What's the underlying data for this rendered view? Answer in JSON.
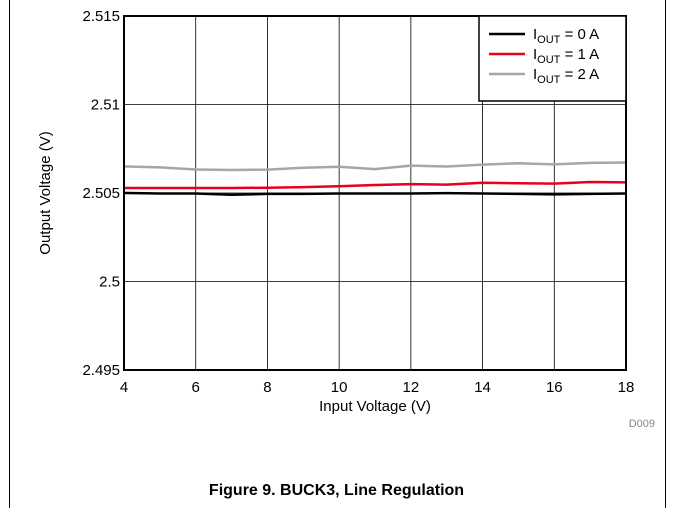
{
  "figure": {
    "caption": "Figure 9. BUCK3, Line Regulation",
    "code": "D009"
  },
  "chart_data": {
    "type": "line",
    "title": "",
    "xlabel": "Input Voltage (V)",
    "ylabel": "Output Voltage (V)",
    "xlim": [
      4,
      18
    ],
    "ylim": [
      2.495,
      2.515
    ],
    "xticks": [
      4,
      6,
      8,
      10,
      12,
      14,
      16,
      18
    ],
    "yticks": [
      2.495,
      2.5,
      2.505,
      2.51,
      2.515
    ],
    "ytick_labels": [
      "2.495",
      "2.5",
      "2.505",
      "2.51",
      "2.515"
    ],
    "grid": true,
    "legend_position": "top-right",
    "x": [
      4,
      5,
      6,
      7,
      8,
      9,
      10,
      11,
      12,
      13,
      14,
      15,
      16,
      17,
      18
    ],
    "series": [
      {
        "name": "I_OUT = 0 A",
        "label_main": "I",
        "label_sub": "OUT",
        "label_rest": " = 0 A",
        "color": "#000000",
        "values": [
          2.505,
          2.50497,
          2.50497,
          2.5049,
          2.50495,
          2.50495,
          2.50497,
          2.50497,
          2.50497,
          2.50499,
          2.50497,
          2.50495,
          2.50492,
          2.50495,
          2.50497
        ]
      },
      {
        "name": "I_OUT = 1 A",
        "label_main": "I",
        "label_sub": "OUT",
        "label_rest": " = 1 A",
        "color": "#e8001c",
        "values": [
          2.50528,
          2.50528,
          2.50528,
          2.50528,
          2.5053,
          2.50533,
          2.50538,
          2.50545,
          2.5055,
          2.50547,
          2.50558,
          2.50555,
          2.50553,
          2.50562,
          2.5056
        ]
      },
      {
        "name": "I_OUT = 2 A",
        "label_main": "I",
        "label_sub": "OUT",
        "label_rest": " = 2 A",
        "color": "#a6a6a6",
        "values": [
          2.5065,
          2.50645,
          2.50633,
          2.5063,
          2.50632,
          2.50643,
          2.50648,
          2.50635,
          2.50655,
          2.5065,
          2.5066,
          2.50668,
          2.50662,
          2.5067,
          2.50672
        ]
      }
    ]
  }
}
